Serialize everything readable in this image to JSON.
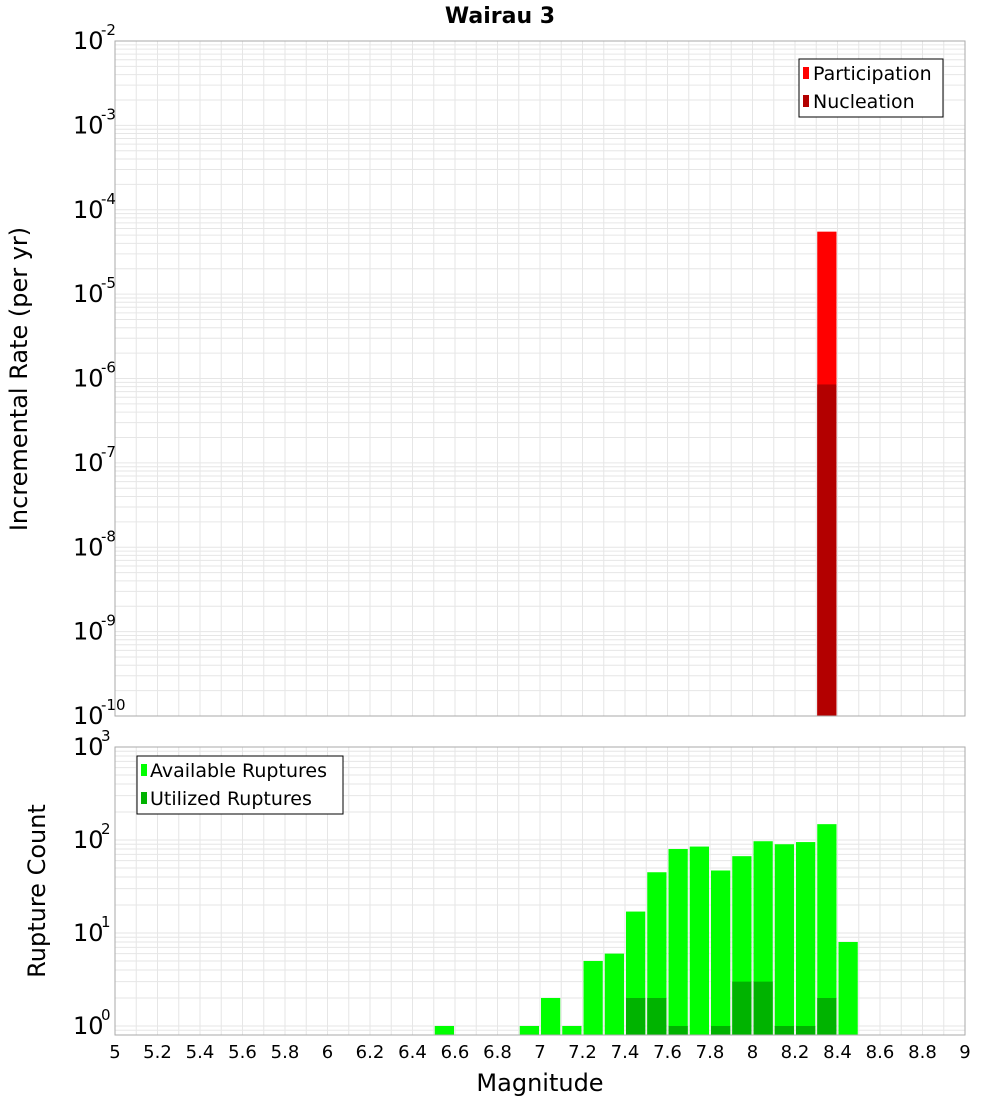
{
  "title": "Wairau 3",
  "colors": {
    "participation": "#ff0000",
    "nucleation": "#b30000",
    "available": "#00ff00",
    "utilized": "#00b300",
    "grid": "#e6e6e6",
    "frame": "#aaaaaa"
  },
  "chart_data": [
    {
      "type": "bar",
      "panel": "top",
      "title": "Wairau 3",
      "xlabel": "",
      "ylabel": "Incremental Rate (per yr)",
      "yscale": "log",
      "xlim": [
        5,
        9
      ],
      "ylim": [
        1e-10,
        0.01
      ],
      "ytick_exponents": [
        "-2",
        "-3",
        "-4",
        "-5",
        "-6",
        "-7",
        "-8",
        "-9",
        "-10"
      ],
      "ytick_base": "10",
      "legend": {
        "position": "top-right",
        "entries": [
          "Participation",
          "Nucleation"
        ]
      },
      "series": [
        {
          "name": "Participation",
          "color": "#ff0000",
          "bins": [
            {
              "x": 8.35,
              "y": 5.5e-05
            }
          ]
        },
        {
          "name": "Nucleation",
          "color": "#b30000",
          "bins": [
            {
              "x": 8.35,
              "y": 8.5e-07
            }
          ]
        }
      ]
    },
    {
      "type": "bar",
      "panel": "bottom",
      "xlabel": "Magnitude",
      "ylabel": "Rupture Count",
      "yscale": "log",
      "xlim": [
        5,
        9
      ],
      "ylim": [
        0.8,
        1000
      ],
      "xticks": [
        "5",
        "5.2",
        "5.4",
        "5.6",
        "5.8",
        "6",
        "6.2",
        "6.4",
        "6.6",
        "6.8",
        "7",
        "7.2",
        "7.4",
        "7.6",
        "7.8",
        "8",
        "8.2",
        "8.4",
        "8.6",
        "8.8",
        "9"
      ],
      "ytick_exponents": [
        "3",
        "2",
        "1",
        "0"
      ],
      "ytick_base": "10",
      "legend": {
        "position": "top-left",
        "entries": [
          "Available Ruptures",
          "Utilized Ruptures"
        ]
      },
      "bin_width": 0.1,
      "series": [
        {
          "name": "Available Ruptures",
          "color": "#00ff00",
          "x": [
            6.55,
            6.95,
            7.05,
            7.15,
            7.25,
            7.35,
            7.45,
            7.55,
            7.65,
            7.75,
            7.85,
            7.95,
            8.05,
            8.15,
            8.25,
            8.35,
            8.45
          ],
          "values": [
            1,
            1,
            2,
            1,
            5,
            6,
            17,
            45,
            80,
            85,
            47,
            67,
            97,
            90,
            95,
            148,
            8
          ]
        },
        {
          "name": "Utilized Ruptures",
          "color": "#00b300",
          "x": [
            7.45,
            7.55,
            7.65,
            7.85,
            7.95,
            8.05,
            8.15,
            8.25,
            8.35
          ],
          "values": [
            2,
            2,
            1,
            1,
            3,
            3,
            1,
            1,
            2
          ]
        }
      ]
    }
  ]
}
